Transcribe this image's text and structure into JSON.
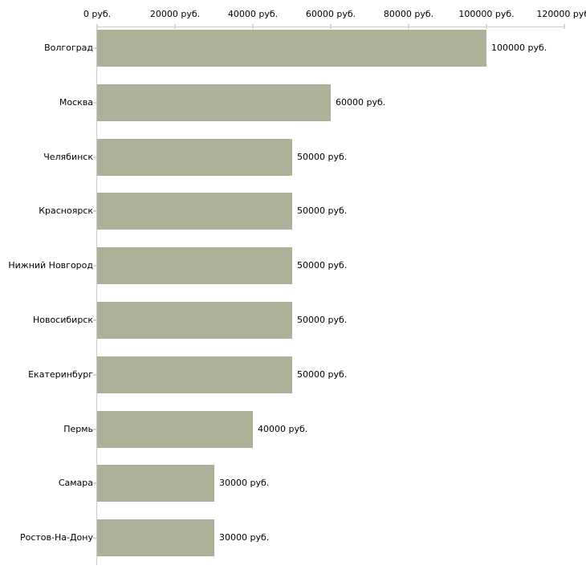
{
  "chart_data": {
    "type": "bar",
    "orientation": "horizontal",
    "title": "",
    "xlabel": "",
    "ylabel": "",
    "grid": false,
    "legend": false,
    "x_axis": {
      "position": "top",
      "range": [
        0,
        120000
      ],
      "tick_values": [
        0,
        20000,
        40000,
        60000,
        80000,
        100000,
        120000
      ],
      "tick_labels": [
        "0 руб.",
        "20000 руб.",
        "40000 руб.",
        "60000 руб.",
        "80000 руб.",
        "100000 руб.",
        "120000 руб."
      ]
    },
    "categories": [
      "Волгоград",
      "Москва",
      "Челябинск",
      "Красноярск",
      "Нижний Новгород",
      "Новосибирск",
      "Екатеринбург",
      "Пермь",
      "Самара",
      "Ростов-На-Дону"
    ],
    "values": [
      100000,
      60000,
      50000,
      50000,
      50000,
      50000,
      50000,
      40000,
      30000,
      30000
    ],
    "value_labels": [
      "100000 руб.",
      "60000 руб.",
      "50000 руб.",
      "50000 руб.",
      "50000 руб.",
      "50000 руб.",
      "50000 руб.",
      "40000 руб.",
      "30000 руб.",
      "30000 руб."
    ],
    "colors": {
      "bar": "#abb299",
      "axis_line": "#c9c9c9",
      "tick_mark": "#d8d8c0",
      "text": "#000000",
      "background": "#ffffff"
    }
  }
}
